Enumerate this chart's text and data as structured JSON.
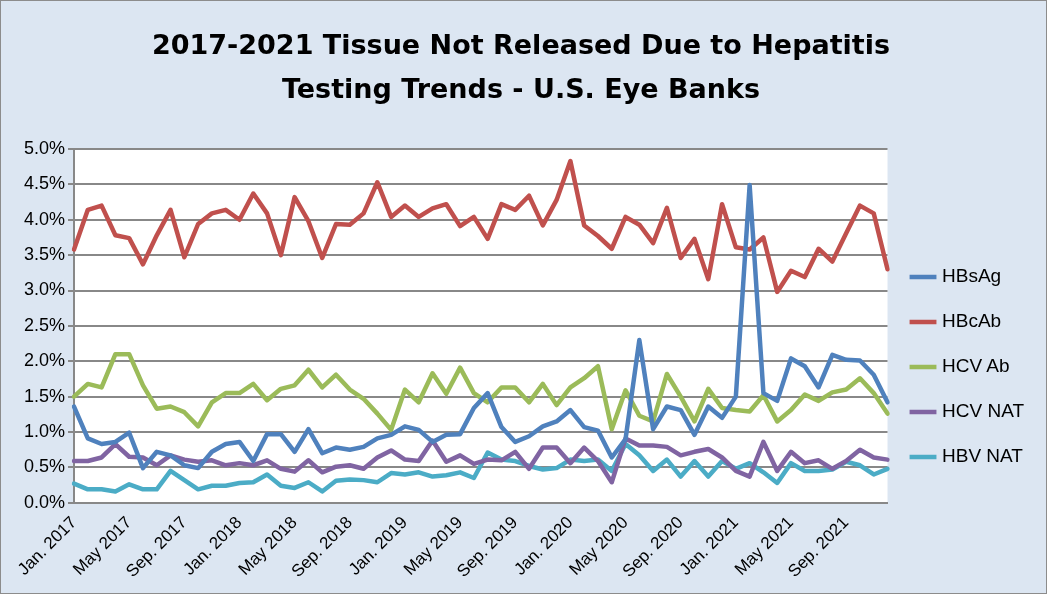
{
  "chart_data": {
    "type": "line",
    "title": "2017-2021 Tissue Not Released Due to Hepatitis Testing Trends - U.S. Eye Banks",
    "categories": [
      "Jan. 2017",
      null,
      null,
      null,
      "May 2017",
      null,
      null,
      null,
      "Sep. 2017",
      null,
      null,
      null,
      "Jan. 2018",
      null,
      null,
      null,
      "May 2018",
      null,
      null,
      null,
      "Sep. 2018",
      null,
      null,
      null,
      "Jan. 2019",
      null,
      null,
      null,
      "May 2019",
      null,
      null,
      null,
      "Sep. 2019",
      null,
      null,
      null,
      "Jan. 2020",
      null,
      null,
      null,
      "May 2020",
      null,
      null,
      null,
      "Sep. 2020",
      null,
      null,
      null,
      "Jan. 2021",
      null,
      null,
      null,
      "May 2021",
      null,
      null,
      null,
      "Sep. 2021",
      null,
      null,
      null
    ],
    "series": [
      {
        "name": "HBsAg",
        "color": "#4f81bd",
        "values": [
          1.36,
          0.91,
          0.83,
          0.86,
          0.99,
          0.49,
          0.72,
          0.67,
          0.53,
          0.49,
          0.72,
          0.83,
          0.86,
          0.59,
          0.97,
          0.97,
          0.72,
          1.04,
          0.7,
          0.78,
          0.75,
          0.79,
          0.91,
          0.96,
          1.08,
          1.03,
          0.86,
          0.96,
          0.97,
          1.34,
          1.55,
          1.07,
          0.86,
          0.94,
          1.08,
          1.15,
          1.31,
          1.07,
          1.02,
          0.64,
          0.9,
          2.3,
          1.04,
          1.36,
          1.31,
          0.96,
          1.36,
          1.2,
          1.5,
          4.49,
          1.55,
          1.44,
          2.04,
          1.93,
          1.63,
          2.09,
          2.02,
          2.01,
          1.81,
          1.42
        ]
      },
      {
        "name": "HBcAb",
        "color": "#c0504d",
        "values": [
          3.58,
          4.14,
          4.2,
          3.78,
          3.74,
          3.37,
          3.78,
          4.14,
          3.47,
          3.94,
          4.09,
          4.14,
          4.0,
          4.37,
          4.09,
          3.5,
          4.32,
          3.98,
          3.46,
          3.94,
          3.93,
          4.09,
          4.53,
          4.04,
          4.2,
          4.04,
          4.16,
          4.22,
          3.91,
          4.04,
          3.73,
          4.22,
          4.14,
          4.34,
          3.92,
          4.28,
          4.83,
          3.92,
          3.77,
          3.59,
          4.04,
          3.93,
          3.67,
          4.17,
          3.46,
          3.73,
          3.16,
          4.22,
          3.61,
          3.58,
          3.75,
          2.98,
          3.28,
          3.19,
          3.59,
          3.41,
          3.81,
          4.2,
          4.09,
          3.3
        ]
      },
      {
        "name": "HCV Ab",
        "color": "#9bbb59",
        "values": [
          1.5,
          1.68,
          1.63,
          2.1,
          2.1,
          1.66,
          1.33,
          1.36,
          1.28,
          1.08,
          1.42,
          1.55,
          1.55,
          1.68,
          1.45,
          1.61,
          1.66,
          1.88,
          1.63,
          1.81,
          1.6,
          1.47,
          1.26,
          1.03,
          1.6,
          1.42,
          1.83,
          1.54,
          1.91,
          1.55,
          1.42,
          1.63,
          1.63,
          1.42,
          1.68,
          1.38,
          1.63,
          1.76,
          1.93,
          1.04,
          1.59,
          1.23,
          1.15,
          1.82,
          1.5,
          1.15,
          1.61,
          1.34,
          1.31,
          1.29,
          1.52,
          1.15,
          1.31,
          1.53,
          1.44,
          1.56,
          1.6,
          1.76,
          1.55,
          1.26
        ]
      },
      {
        "name": "HCV NAT",
        "color": "#8064a2",
        "values": [
          0.59,
          0.59,
          0.64,
          0.83,
          0.65,
          0.64,
          0.53,
          0.67,
          0.61,
          0.58,
          0.6,
          0.53,
          0.56,
          0.53,
          0.6,
          0.48,
          0.44,
          0.6,
          0.43,
          0.51,
          0.53,
          0.48,
          0.64,
          0.74,
          0.61,
          0.59,
          0.88,
          0.58,
          0.67,
          0.55,
          0.61,
          0.6,
          0.72,
          0.48,
          0.78,
          0.78,
          0.56,
          0.78,
          0.59,
          0.29,
          0.91,
          0.81,
          0.81,
          0.79,
          0.67,
          0.72,
          0.76,
          0.64,
          0.45,
          0.37,
          0.86,
          0.45,
          0.72,
          0.56,
          0.6,
          0.48,
          0.59,
          0.75,
          0.64,
          0.61
        ]
      },
      {
        "name": "HBV NAT",
        "color": "#4bacc6",
        "values": [
          0.27,
          0.19,
          0.19,
          0.16,
          0.26,
          0.19,
          0.19,
          0.45,
          0.32,
          0.19,
          0.24,
          0.24,
          0.28,
          0.29,
          0.4,
          0.24,
          0.21,
          0.29,
          0.16,
          0.31,
          0.33,
          0.32,
          0.29,
          0.42,
          0.4,
          0.43,
          0.37,
          0.39,
          0.43,
          0.35,
          0.71,
          0.61,
          0.59,
          0.52,
          0.47,
          0.49,
          0.61,
          0.59,
          0.61,
          0.45,
          0.83,
          0.67,
          0.45,
          0.61,
          0.37,
          0.59,
          0.37,
          0.59,
          0.48,
          0.56,
          0.43,
          0.28,
          0.56,
          0.45,
          0.45,
          0.47,
          0.58,
          0.53,
          0.4,
          0.48
        ]
      }
    ],
    "ylim": [
      0,
      5
    ],
    "yticks": [
      {
        "value": 0,
        "label": "0.0%"
      },
      {
        "value": 0.5,
        "label": "0.5%"
      },
      {
        "value": 1,
        "label": "1.0%"
      },
      {
        "value": 1.5,
        "label": "1.5%"
      },
      {
        "value": 2,
        "label": "2.0%"
      },
      {
        "value": 2.5,
        "label": "2.5%"
      },
      {
        "value": 3,
        "label": "3.0%"
      },
      {
        "value": 3.5,
        "label": "3.5%"
      },
      {
        "value": 4,
        "label": "4.0%"
      },
      {
        "value": 4.5,
        "label": "4.5%"
      },
      {
        "value": 5,
        "label": "5.0%"
      }
    ],
    "grid": "y",
    "legend": "right",
    "marker": "none",
    "line_style": "solid"
  }
}
